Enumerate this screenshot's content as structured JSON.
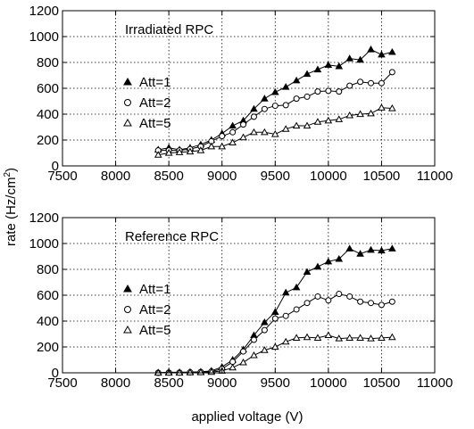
{
  "chart_data": [
    {
      "type": "line",
      "title": "Irradiated RPC",
      "xlim": [
        7500,
        11000
      ],
      "ylim": [
        0,
        1200
      ],
      "xticks": [
        "7500",
        "8000",
        "8500",
        "9000",
        "9500",
        "10000",
        "10500",
        "11000"
      ],
      "yticks": [
        "0",
        "200",
        "400",
        "600",
        "800",
        "1000",
        "1200"
      ],
      "grid": true,
      "legend_position": "left-middle",
      "x": [
        8400,
        8500,
        8600,
        8700,
        8800,
        8900,
        9000,
        9100,
        9200,
        9300,
        9400,
        9500,
        9600,
        9700,
        9800,
        9900,
        10000,
        10100,
        10200,
        10300,
        10400,
        10500,
        10600
      ],
      "series": [
        {
          "name": "Att=1",
          "marker": "filled-triangle",
          "values": [
            125,
            140,
            125,
            140,
            165,
            200,
            250,
            310,
            350,
            440,
            520,
            570,
            610,
            660,
            710,
            745,
            780,
            770,
            830,
            820,
            900,
            860,
            880
          ]
        },
        {
          "name": "Att=2",
          "marker": "open-circle",
          "values": [
            120,
            120,
            120,
            130,
            150,
            190,
            230,
            260,
            320,
            380,
            440,
            465,
            470,
            520,
            535,
            575,
            580,
            575,
            620,
            650,
            640,
            640,
            725
          ]
        },
        {
          "name": "Att=5",
          "marker": "open-triangle",
          "values": [
            85,
            100,
            105,
            110,
            120,
            150,
            150,
            180,
            220,
            260,
            260,
            245,
            285,
            310,
            310,
            340,
            350,
            360,
            390,
            400,
            405,
            450,
            445
          ]
        }
      ]
    },
    {
      "type": "line",
      "title": "Reference RPC",
      "xlim": [
        7500,
        11000
      ],
      "ylim": [
        0,
        1200
      ],
      "xticks": [
        "7500",
        "8000",
        "8500",
        "9000",
        "9500",
        "10000",
        "10500",
        "11000"
      ],
      "yticks": [
        "0",
        "200",
        "400",
        "600",
        "800",
        "1000",
        "1200"
      ],
      "grid": true,
      "legend_position": "left-middle",
      "x": [
        8400,
        8500,
        8600,
        8700,
        8800,
        8900,
        9000,
        9100,
        9200,
        9300,
        9400,
        9500,
        9600,
        9700,
        9800,
        9900,
        10000,
        10100,
        10200,
        10300,
        10400,
        10500,
        10600
      ],
      "series": [
        {
          "name": "Att=1",
          "marker": "filled-triangle",
          "values": [
            2,
            4,
            4,
            6,
            8,
            15,
            45,
            100,
            180,
            290,
            390,
            470,
            620,
            660,
            780,
            820,
            860,
            880,
            960,
            920,
            950,
            945,
            960
          ]
        },
        {
          "name": "Att=2",
          "marker": "open-circle",
          "values": [
            0,
            2,
            2,
            4,
            6,
            10,
            30,
            85,
            165,
            255,
            330,
            420,
            440,
            490,
            540,
            590,
            560,
            610,
            590,
            550,
            540,
            525,
            550
          ]
        },
        {
          "name": "Att=5",
          "marker": "open-triangle",
          "values": [
            0,
            0,
            0,
            2,
            3,
            6,
            15,
            40,
            80,
            135,
            175,
            200,
            240,
            270,
            275,
            270,
            290,
            265,
            270,
            270,
            265,
            270,
            275
          ]
        }
      ]
    }
  ],
  "labels": {
    "ylabel": "rate (Hz/cm",
    "ylabel_sup": "2",
    "ylabel_end": ")",
    "xlabel": "applied voltage (V)"
  }
}
